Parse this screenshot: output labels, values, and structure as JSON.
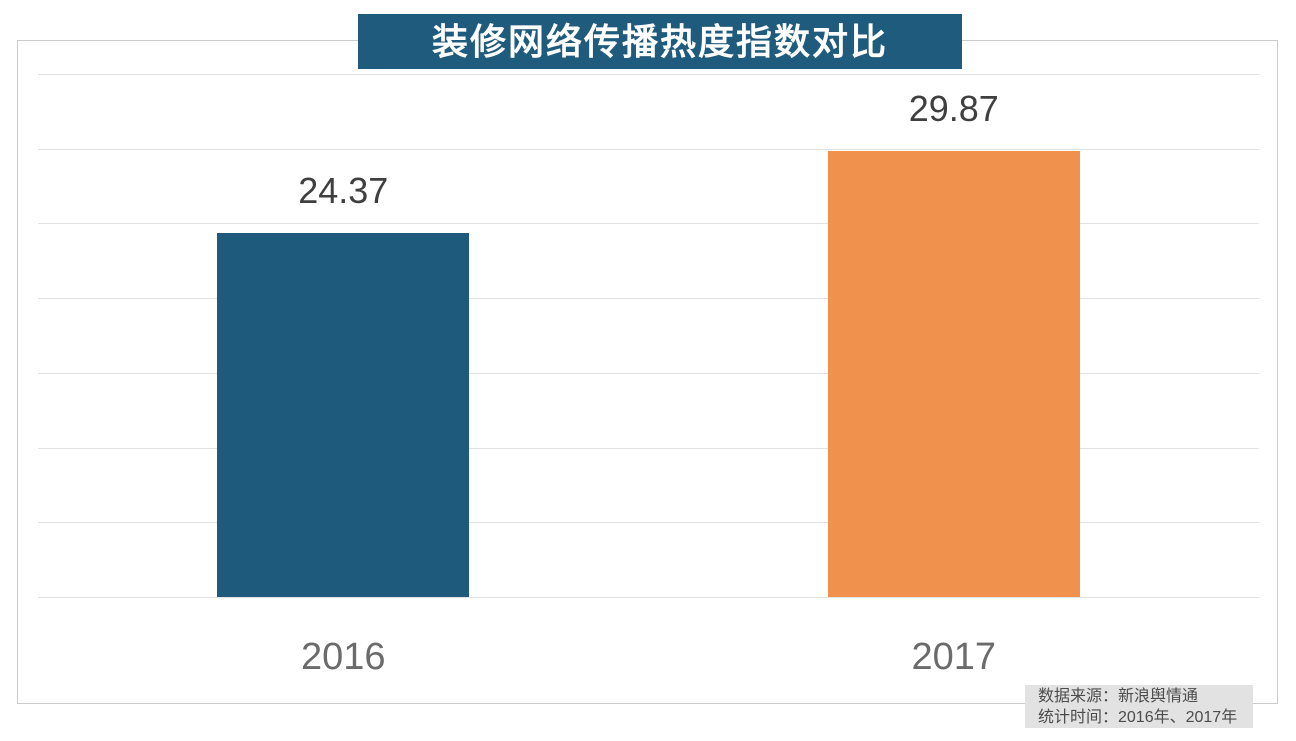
{
  "chart_data": {
    "type": "bar",
    "title": "装修网络传播热度指数对比",
    "categories": [
      "2016",
      "2017"
    ],
    "values": [
      24.37,
      29.87
    ],
    "value_labels": [
      "24.37",
      "29.87"
    ],
    "colors": [
      "#1e5a7b",
      "#f0914d"
    ],
    "xlabel": "",
    "ylabel": "",
    "ylim": [
      0,
      35
    ],
    "ystep": 5,
    "grid": true,
    "legend_position": "none",
    "gridline_color": "#e2e2e2",
    "value_label_color": "#3f3f3f",
    "axis_label_color": "#6b6b6b"
  },
  "title_bar": {
    "bg_color": "#1f5b7c",
    "text_color": "#ffffff"
  },
  "source_note": {
    "line1": "数据来源：新浪舆情通",
    "line2": "统计时间：2016年、2017年",
    "bg_color": "#e2e2e2",
    "text_color": "#4c4c4c"
  }
}
